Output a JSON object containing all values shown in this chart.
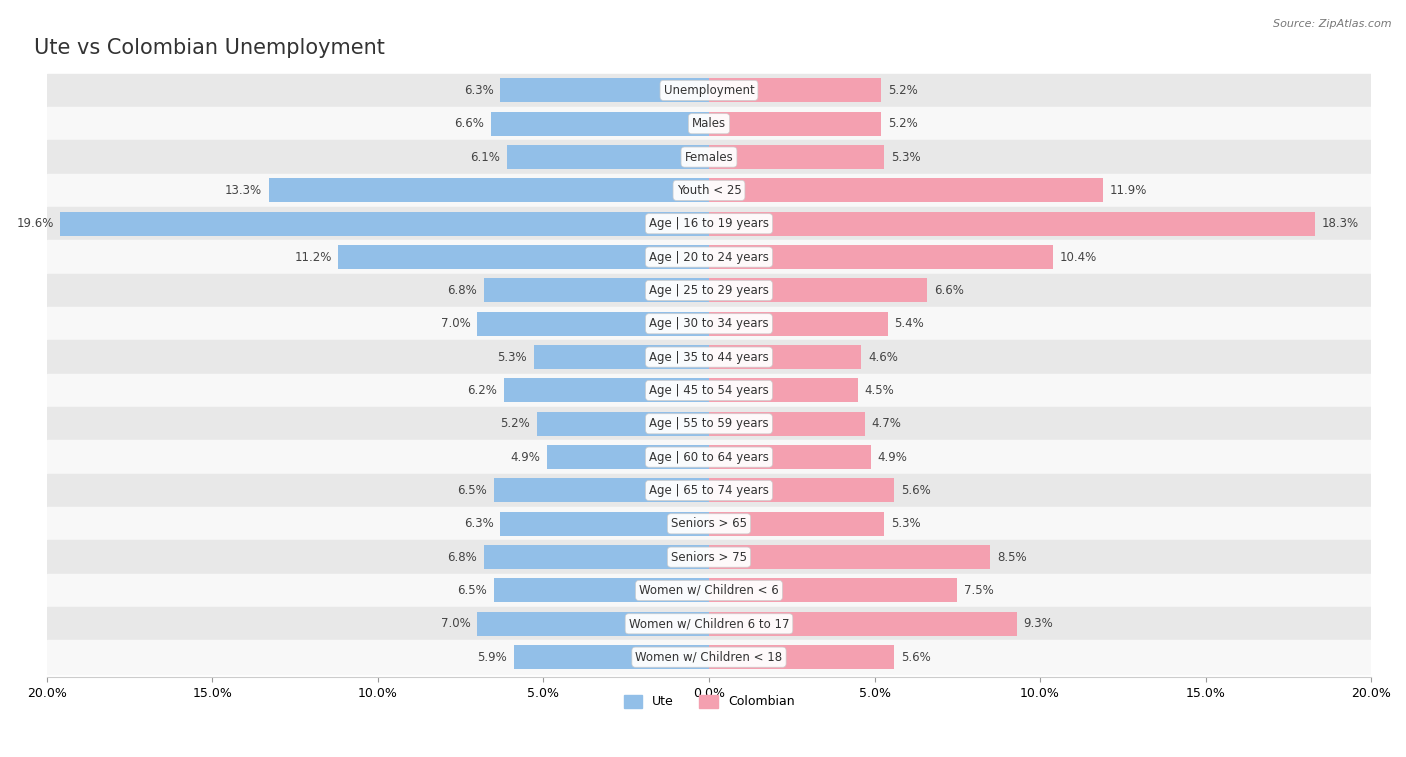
{
  "title": "Ute vs Colombian Unemployment",
  "source": "Source: ZipAtlas.com",
  "categories": [
    "Unemployment",
    "Males",
    "Females",
    "Youth < 25",
    "Age | 16 to 19 years",
    "Age | 20 to 24 years",
    "Age | 25 to 29 years",
    "Age | 30 to 34 years",
    "Age | 35 to 44 years",
    "Age | 45 to 54 years",
    "Age | 55 to 59 years",
    "Age | 60 to 64 years",
    "Age | 65 to 74 years",
    "Seniors > 65",
    "Seniors > 75",
    "Women w/ Children < 6",
    "Women w/ Children 6 to 17",
    "Women w/ Children < 18"
  ],
  "ute_values": [
    6.3,
    6.6,
    6.1,
    13.3,
    19.6,
    11.2,
    6.8,
    7.0,
    5.3,
    6.2,
    5.2,
    4.9,
    6.5,
    6.3,
    6.8,
    6.5,
    7.0,
    5.9
  ],
  "colombian_values": [
    5.2,
    5.2,
    5.3,
    11.9,
    18.3,
    10.4,
    6.6,
    5.4,
    4.6,
    4.5,
    4.7,
    4.9,
    5.6,
    5.3,
    8.5,
    7.5,
    9.3,
    5.6
  ],
  "ute_color": "#92bfe8",
  "colombian_color": "#f4a0b0",
  "bg_color_odd": "#e8e8e8",
  "bg_color_even": "#f8f8f8",
  "xlim": 20.0,
  "bar_height": 0.72,
  "title_fontsize": 15,
  "label_fontsize": 8.5,
  "tick_fontsize": 9,
  "cat_fontsize": 8.5
}
